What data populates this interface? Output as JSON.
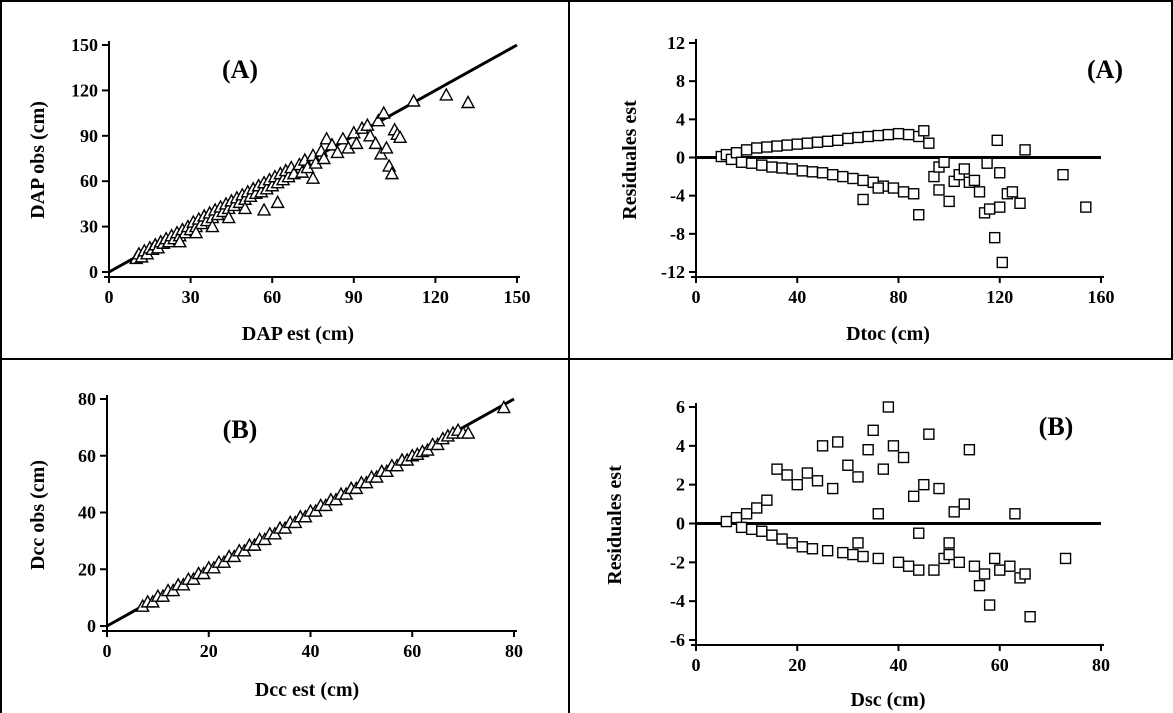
{
  "chart_data": [
    {
      "id": "top-left",
      "type": "scatter",
      "panel_tag": "(A)",
      "xlabel": "DAP est (cm)",
      "ylabel": "DAP obs (cm)",
      "xlim": [
        0,
        150
      ],
      "ylim": [
        0,
        150
      ],
      "xticks": [
        0,
        30,
        60,
        90,
        120,
        150
      ],
      "yticks": [
        0,
        30,
        60,
        90,
        120,
        150
      ],
      "marker": "triangle",
      "reference_line": {
        "x": [
          0,
          150
        ],
        "y": [
          0,
          150
        ]
      },
      "points": [
        [
          10,
          9
        ],
        [
          11,
          12
        ],
        [
          12,
          10
        ],
        [
          13,
          14
        ],
        [
          14,
          12
        ],
        [
          15,
          16
        ],
        [
          16,
          15
        ],
        [
          17,
          18
        ],
        [
          18,
          16
        ],
        [
          19,
          20
        ],
        [
          20,
          19
        ],
        [
          21,
          22
        ],
        [
          22,
          20
        ],
        [
          23,
          24
        ],
        [
          24,
          22
        ],
        [
          25,
          26
        ],
        [
          26,
          24
        ],
        [
          27,
          28
        ],
        [
          28,
          26
        ],
        [
          29,
          30
        ],
        [
          30,
          28
        ],
        [
          31,
          33
        ],
        [
          32,
          30
        ],
        [
          33,
          35
        ],
        [
          34,
          32
        ],
        [
          35,
          37
        ],
        [
          36,
          34
        ],
        [
          37,
          39
        ],
        [
          38,
          36
        ],
        [
          39,
          41
        ],
        [
          40,
          38
        ],
        [
          41,
          43
        ],
        [
          42,
          40
        ],
        [
          43,
          45
        ],
        [
          44,
          42
        ],
        [
          45,
          47
        ],
        [
          46,
          44
        ],
        [
          47,
          49
        ],
        [
          48,
          46
        ],
        [
          49,
          51
        ],
        [
          50,
          48
        ],
        [
          51,
          53
        ],
        [
          52,
          50
        ],
        [
          53,
          55
        ],
        [
          54,
          52
        ],
        [
          55,
          57
        ],
        [
          56,
          53
        ],
        [
          57,
          59
        ],
        [
          58,
          55
        ],
        [
          59,
          61
        ],
        [
          60,
          57
        ],
        [
          61,
          63
        ],
        [
          62,
          59
        ],
        [
          63,
          65
        ],
        [
          64,
          61
        ],
        [
          65,
          67
        ],
        [
          66,
          63
        ],
        [
          67,
          69
        ],
        [
          68,
          65
        ],
        [
          70,
          71
        ],
        [
          71,
          66
        ],
        [
          72,
          74
        ],
        [
          73,
          69
        ],
        [
          75,
          77
        ],
        [
          76,
          72
        ],
        [
          78,
          80
        ],
        [
          79,
          75
        ],
        [
          80,
          88
        ],
        [
          82,
          84
        ],
        [
          84,
          79
        ],
        [
          86,
          88
        ],
        [
          88,
          82
        ],
        [
          90,
          92
        ],
        [
          91,
          85
        ],
        [
          93,
          95
        ],
        [
          95,
          97
        ],
        [
          96,
          90
        ],
        [
          98,
          85
        ],
        [
          99,
          100
        ],
        [
          100,
          78
        ],
        [
          101,
          105
        ],
        [
          102,
          82
        ],
        [
          103,
          70
        ],
        [
          104,
          65
        ],
        [
          105,
          94
        ],
        [
          106,
          91
        ],
        [
          107,
          89
        ],
        [
          112,
          113
        ],
        [
          124,
          117
        ],
        [
          132,
          112
        ],
        [
          26,
          20
        ],
        [
          32,
          26
        ],
        [
          38,
          30
        ],
        [
          44,
          36
        ],
        [
          50,
          42
        ],
        [
          57,
          41
        ],
        [
          62,
          46
        ],
        [
          75,
          62
        ]
      ]
    },
    {
      "id": "top-right",
      "type": "scatter",
      "panel_tag": "(A)",
      "xlabel": "Dtoc (cm)",
      "ylabel": "Residuales est",
      "xlim": [
        0,
        160
      ],
      "ylim": [
        -12,
        12
      ],
      "xticks": [
        0,
        40,
        80,
        120,
        160
      ],
      "yticks": [
        -12,
        -8,
        -4,
        0,
        4,
        8,
        12
      ],
      "marker": "square",
      "reference_line": {
        "x": [
          0,
          160
        ],
        "y": [
          0,
          0
        ]
      },
      "points": [
        [
          10,
          0.1
        ],
        [
          12,
          0.3
        ],
        [
          14,
          -0.2
        ],
        [
          16,
          0.5
        ],
        [
          18,
          -0.5
        ],
        [
          20,
          0.8
        ],
        [
          22,
          -0.6
        ],
        [
          24,
          1.0
        ],
        [
          26,
          -0.8
        ],
        [
          28,
          1.1
        ],
        [
          30,
          -1.0
        ],
        [
          32,
          1.2
        ],
        [
          34,
          -1.1
        ],
        [
          36,
          1.3
        ],
        [
          38,
          -1.2
        ],
        [
          40,
          1.4
        ],
        [
          42,
          -1.4
        ],
        [
          44,
          1.5
        ],
        [
          46,
          -1.5
        ],
        [
          48,
          1.6
        ],
        [
          50,
          -1.6
        ],
        [
          52,
          1.7
        ],
        [
          54,
          -1.8
        ],
        [
          56,
          1.8
        ],
        [
          58,
          -2.0
        ],
        [
          60,
          2.0
        ],
        [
          62,
          -2.2
        ],
        [
          64,
          2.1
        ],
        [
          66,
          -2.4
        ],
        [
          68,
          2.2
        ],
        [
          70,
          -2.6
        ],
        [
          72,
          2.3
        ],
        [
          74,
          -3.0
        ],
        [
          76,
          2.4
        ],
        [
          78,
          -3.2
        ],
        [
          80,
          2.5
        ],
        [
          82,
          -3.6
        ],
        [
          84,
          2.4
        ],
        [
          86,
          -3.8
        ],
        [
          88,
          2.2
        ],
        [
          90,
          2.8
        ],
        [
          92,
          1.5
        ],
        [
          94,
          -2.0
        ],
        [
          96,
          -1.0
        ],
        [
          98,
          -0.5
        ],
        [
          100,
          -4.6
        ],
        [
          102,
          -2.5
        ],
        [
          104,
          -1.8
        ],
        [
          106,
          -1.2
        ],
        [
          108,
          -2.6
        ],
        [
          110,
          -2.4
        ],
        [
          112,
          -3.6
        ],
        [
          114,
          -5.8
        ],
        [
          116,
          -5.4
        ],
        [
          118,
          -8.4
        ],
        [
          119,
          1.8
        ],
        [
          120,
          -5.2
        ],
        [
          121,
          -11.0
        ],
        [
          123,
          -3.8
        ],
        [
          125,
          -3.6
        ],
        [
          128,
          -4.8
        ],
        [
          130,
          0.8
        ],
        [
          145,
          -1.8
        ],
        [
          154,
          -5.2
        ],
        [
          66,
          -4.4
        ],
        [
          72,
          -3.2
        ],
        [
          88,
          -6.0
        ],
        [
          96,
          -3.4
        ],
        [
          115,
          -0.6
        ],
        [
          120,
          -1.6
        ]
      ]
    },
    {
      "id": "bottom-left",
      "type": "scatter",
      "panel_tag": "(B)",
      "xlabel": "Dcc est (cm)",
      "ylabel": "Dcc obs (cm)",
      "xlim": [
        0,
        80
      ],
      "ylim": [
        0,
        80
      ],
      "xticks": [
        0,
        20,
        40,
        60,
        80
      ],
      "yticks": [
        0,
        20,
        40,
        60,
        80
      ],
      "marker": "triangle",
      "reference_line": {
        "x": [
          0,
          80
        ],
        "y": [
          0,
          80
        ]
      },
      "points": [
        [
          7,
          7
        ],
        [
          8,
          8.5
        ],
        [
          9,
          8.5
        ],
        [
          10,
          10.5
        ],
        [
          11,
          10.5
        ],
        [
          12,
          12.5
        ],
        [
          13,
          12.5
        ],
        [
          14,
          14.5
        ],
        [
          15,
          14.5
        ],
        [
          16,
          16.5
        ],
        [
          17,
          16.5
        ],
        [
          18,
          18.5
        ],
        [
          19,
          18.5
        ],
        [
          20,
          20.5
        ],
        [
          21,
          20.5
        ],
        [
          22,
          22.5
        ],
        [
          23,
          22.5
        ],
        [
          24,
          24.5
        ],
        [
          25,
          24.5
        ],
        [
          26,
          26.5
        ],
        [
          27,
          26.5
        ],
        [
          28,
          28.5
        ],
        [
          29,
          28.5
        ],
        [
          30,
          30.5
        ],
        [
          31,
          30.5
        ],
        [
          32,
          32.5
        ],
        [
          33,
          32.5
        ],
        [
          34,
          34.5
        ],
        [
          35,
          34.5
        ],
        [
          36,
          36.5
        ],
        [
          37,
          36.5
        ],
        [
          38,
          38.5
        ],
        [
          39,
          38.5
        ],
        [
          40,
          40.5
        ],
        [
          41,
          40.5
        ],
        [
          42,
          42.5
        ],
        [
          43,
          42.5
        ],
        [
          44,
          44.5
        ],
        [
          45,
          44.5
        ],
        [
          46,
          46.5
        ],
        [
          47,
          46.5
        ],
        [
          48,
          48.5
        ],
        [
          49,
          48.5
        ],
        [
          50,
          50.5
        ],
        [
          51,
          50.5
        ],
        [
          52,
          52.5
        ],
        [
          53,
          52.5
        ],
        [
          54,
          54.5
        ],
        [
          55,
          54.5
        ],
        [
          56,
          56.5
        ],
        [
          57,
          56.5
        ],
        [
          58,
          58.5
        ],
        [
          59,
          58.5
        ],
        [
          60,
          60
        ],
        [
          61,
          60.5
        ],
        [
          62,
          61.5
        ],
        [
          63,
          62
        ],
        [
          64,
          64
        ],
        [
          65,
          64
        ],
        [
          66,
          66
        ],
        [
          67,
          67
        ],
        [
          68,
          68
        ],
        [
          69,
          69
        ],
        [
          70,
          68
        ],
        [
          71,
          68
        ],
        [
          78,
          77
        ]
      ]
    },
    {
      "id": "bottom-right",
      "type": "scatter",
      "panel_tag": "(B)",
      "xlabel": "Dsc (cm)",
      "ylabel": "Residuales est",
      "xlim": [
        0,
        80
      ],
      "ylim": [
        -6,
        6
      ],
      "xticks": [
        0,
        20,
        40,
        60,
        80
      ],
      "yticks": [
        -6,
        -4,
        -2,
        0,
        2,
        4,
        6
      ],
      "marker": "square",
      "reference_line": {
        "x": [
          0,
          80
        ],
        "y": [
          0,
          0
        ]
      },
      "points": [
        [
          6,
          0.1
        ],
        [
          8,
          0.3
        ],
        [
          9,
          -0.2
        ],
        [
          10,
          0.5
        ],
        [
          11,
          -0.3
        ],
        [
          12,
          0.8
        ],
        [
          13,
          -0.4
        ],
        [
          14,
          1.2
        ],
        [
          15,
          -0.6
        ],
        [
          16,
          2.8
        ],
        [
          17,
          -0.8
        ],
        [
          18,
          2.5
        ],
        [
          19,
          -1.0
        ],
        [
          20,
          2.0
        ],
        [
          21,
          -1.2
        ],
        [
          22,
          2.6
        ],
        [
          23,
          -1.3
        ],
        [
          24,
          2.2
        ],
        [
          25,
          4.0
        ],
        [
          26,
          -1.4
        ],
        [
          27,
          1.8
        ],
        [
          28,
          4.2
        ],
        [
          29,
          -1.5
        ],
        [
          30,
          3.0
        ],
        [
          31,
          -1.6
        ],
        [
          32,
          2.4
        ],
        [
          33,
          -1.7
        ],
        [
          34,
          3.8
        ],
        [
          35,
          4.8
        ],
        [
          36,
          -1.8
        ],
        [
          37,
          2.8
        ],
        [
          38,
          6.0
        ],
        [
          39,
          4.0
        ],
        [
          40,
          -2.0
        ],
        [
          41,
          3.4
        ],
        [
          42,
          -2.2
        ],
        [
          43,
          1.4
        ],
        [
          44,
          -2.4
        ],
        [
          45,
          2.0
        ],
        [
          46,
          4.6
        ],
        [
          47,
          -2.4
        ],
        [
          48,
          1.8
        ],
        [
          49,
          -1.8
        ],
        [
          50,
          -1.6
        ],
        [
          51,
          0.6
        ],
        [
          52,
          -2.0
        ],
        [
          53,
          1.0
        ],
        [
          54,
          3.8
        ],
        [
          55,
          -2.2
        ],
        [
          56,
          -3.2
        ],
        [
          57,
          -2.6
        ],
        [
          58,
          -4.2
        ],
        [
          59,
          -1.8
        ],
        [
          60,
          -2.4
        ],
        [
          62,
          -2.2
        ],
        [
          63,
          0.5
        ],
        [
          64,
          -2.8
        ],
        [
          65,
          -2.6
        ],
        [
          66,
          -4.8
        ],
        [
          73,
          -1.8
        ],
        [
          32,
          -1.0
        ],
        [
          36,
          0.5
        ],
        [
          44,
          -0.5
        ],
        [
          50,
          -1.0
        ]
      ]
    }
  ]
}
